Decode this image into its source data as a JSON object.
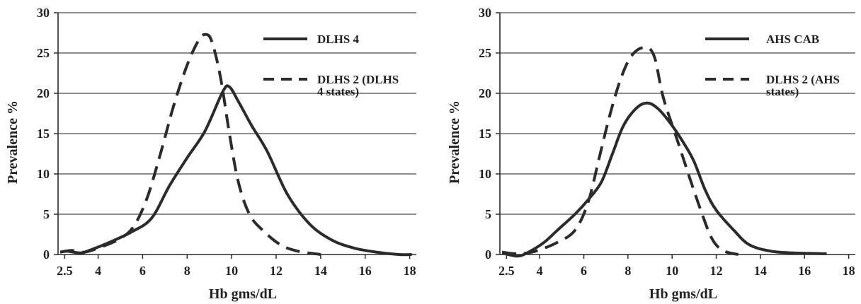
{
  "colors": {
    "line": "#2b2b2b",
    "grid": "#4a4a4a",
    "axis": "#2b2b2b",
    "background": "#ffffff"
  },
  "chart_data": [
    {
      "type": "line",
      "title": "",
      "xlabel": "Hb gms/dL",
      "ylabel": "Prevalence %",
      "xlim": [
        2.2,
        18.3
      ],
      "ylim": [
        0,
        30
      ],
      "x_ticks": [
        2.5,
        4,
        6,
        8,
        10,
        12,
        14,
        16,
        18
      ],
      "y_ticks": [
        0,
        5,
        10,
        15,
        20,
        25,
        30
      ],
      "grid": "horizontal",
      "legend_position": "top-right",
      "series": [
        {
          "name": "DLHS 4",
          "style": "solid",
          "points": [
            [
              2.3,
              0.3
            ],
            [
              2.6,
              0.4
            ],
            [
              3.2,
              0.2
            ],
            [
              3.6,
              0.5
            ],
            [
              4.5,
              1.5
            ],
            [
              5.5,
              2.8
            ],
            [
              6.4,
              4.5
            ],
            [
              7.2,
              8.5
            ],
            [
              8.0,
              12.0
            ],
            [
              8.8,
              15.3
            ],
            [
              9.6,
              20.2
            ],
            [
              9.9,
              20.8
            ],
            [
              10.3,
              19.0
            ],
            [
              10.9,
              16.0
            ],
            [
              11.6,
              12.8
            ],
            [
              12.5,
              7.5
            ],
            [
              13.5,
              3.8
            ],
            [
              14.5,
              1.8
            ],
            [
              15.5,
              0.8
            ],
            [
              16.5,
              0.3
            ],
            [
              17.5,
              0.0
            ],
            [
              18.1,
              0.0
            ]
          ]
        },
        {
          "name": "DLHS 2 (DLHS 4 states)",
          "style": "dashed",
          "points": [
            [
              2.3,
              0.3
            ],
            [
              2.8,
              0.5
            ],
            [
              3.4,
              0.3
            ],
            [
              4.2,
              1.0
            ],
            [
              5.0,
              2.0
            ],
            [
              5.6,
              3.5
            ],
            [
              6.2,
              7.0
            ],
            [
              6.8,
              12.5
            ],
            [
              7.4,
              18.5
            ],
            [
              8.0,
              23.5
            ],
            [
              8.5,
              26.5
            ],
            [
              8.8,
              27.3
            ],
            [
              9.1,
              26.5
            ],
            [
              9.5,
              22.0
            ],
            [
              9.9,
              15.0
            ],
            [
              10.3,
              9.0
            ],
            [
              10.8,
              5.0
            ],
            [
              11.4,
              3.0
            ],
            [
              12.2,
              1.2
            ],
            [
              13.0,
              0.4
            ],
            [
              14.0,
              0.0
            ]
          ]
        }
      ],
      "legend": [
        {
          "label": "DLHS 4",
          "line_1": "DLHS 4",
          "line_2": ""
        },
        {
          "label": "DLHS 2 (DLHS 4 states)",
          "line_1": "DLHS 2 (DLHS",
          "line_2": "4 states)"
        }
      ]
    },
    {
      "type": "line",
      "title": "",
      "xlabel": "Hb gms/dL",
      "ylabel": "Prevalence %",
      "xlim": [
        2.2,
        18.3
      ],
      "ylim": [
        0,
        30
      ],
      "x_ticks": [
        2.5,
        4,
        6,
        8,
        10,
        12,
        14,
        16,
        18
      ],
      "y_ticks": [
        0,
        5,
        10,
        15,
        20,
        25,
        30
      ],
      "grid": "horizontal",
      "legend_position": "top-right",
      "series": [
        {
          "name": "AHS CAB",
          "style": "solid",
          "points": [
            [
              2.3,
              0.2
            ],
            [
              3.0,
              -0.2
            ],
            [
              3.5,
              0.3
            ],
            [
              4.2,
              1.5
            ],
            [
              4.8,
              3.0
            ],
            [
              5.6,
              5.0
            ],
            [
              6.2,
              6.8
            ],
            [
              6.8,
              9.0
            ],
            [
              7.3,
              12.5
            ],
            [
              7.8,
              16.0
            ],
            [
              8.4,
              18.2
            ],
            [
              8.9,
              18.8
            ],
            [
              9.4,
              18.0
            ],
            [
              10.0,
              16.0
            ],
            [
              10.6,
              13.5
            ],
            [
              11.0,
              11.5
            ],
            [
              11.5,
              8.0
            ],
            [
              12.0,
              5.5
            ],
            [
              12.8,
              3.0
            ],
            [
              13.5,
              1.2
            ],
            [
              14.5,
              0.4
            ],
            [
              15.5,
              0.2
            ],
            [
              17.0,
              0.1
            ]
          ]
        },
        {
          "name": "DLHS 2 (AHS states)",
          "style": "dashed",
          "points": [
            [
              2.3,
              0.3
            ],
            [
              3.0,
              0.1
            ],
            [
              3.8,
              0.4
            ],
            [
              4.8,
              1.5
            ],
            [
              5.6,
              3.0
            ],
            [
              6.2,
              6.5
            ],
            [
              6.7,
              12.0
            ],
            [
              7.2,
              17.5
            ],
            [
              7.7,
              22.0
            ],
            [
              8.2,
              24.8
            ],
            [
              8.8,
              25.7
            ],
            [
              9.2,
              24.5
            ],
            [
              9.6,
              19.5
            ],
            [
              10.2,
              14.5
            ],
            [
              10.8,
              9.5
            ],
            [
              11.3,
              5.5
            ],
            [
              11.8,
              2.0
            ],
            [
              12.3,
              0.5
            ],
            [
              13.0,
              0.0
            ]
          ]
        }
      ],
      "legend": [
        {
          "label": "AHS CAB",
          "line_1": "AHS CAB",
          "line_2": ""
        },
        {
          "label": "DLHS 2 (AHS states)",
          "line_1": "DLHS 2 (AHS",
          "line_2": "states)"
        }
      ]
    }
  ]
}
